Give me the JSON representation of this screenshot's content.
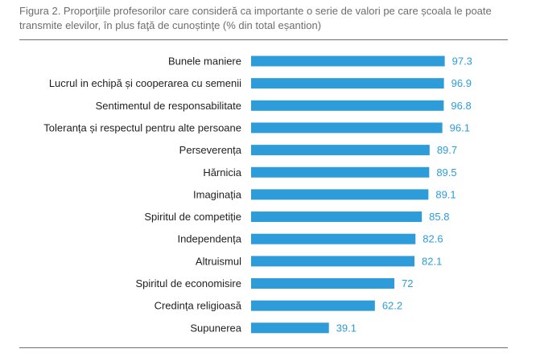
{
  "figure": {
    "caption": "Figura 2. Proporţiile profesorilor care consideră ca importante o serie de valori pe care școala le poate transmite elevilor, în plus faţă de cunoștinţe (% din total eșantion)"
  },
  "colors": {
    "bar": "#2e9cd9",
    "value_text": "#2e9cd9",
    "label_text": "#1f1f1f",
    "caption_text": "#6d6d6d",
    "rule": "#6f6f6f"
  },
  "chart_data": {
    "type": "bar",
    "orientation": "horizontal",
    "title": "",
    "xlabel": "",
    "ylabel": "",
    "xlim": [
      0,
      100
    ],
    "grid": false,
    "legend": "none",
    "categories": [
      "Bunele maniere",
      "Lucrul in echipă și cooperarea cu semenii",
      "Sentimentul de responsabilitate",
      "Toleranța și respectul pentru alte persoane",
      "Perseverența",
      "Hărnicia",
      "Imaginația",
      "Spiritul de competiție",
      "Independența",
      "Altruismul",
      "Spiritul de economisire",
      "Credința religioasă",
      "Supunerea"
    ],
    "values": [
      97.3,
      96.9,
      96.8,
      96.1,
      89.7,
      89.5,
      89.1,
      85.8,
      82.6,
      82.1,
      72,
      62.2,
      39.1
    ]
  }
}
